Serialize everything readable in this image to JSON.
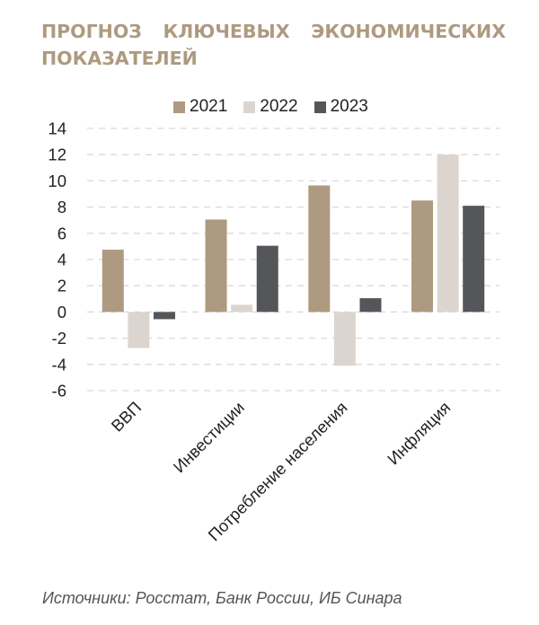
{
  "title": {
    "line1": [
      "ПРОГНОЗ",
      "КЛЮЧЕВЫХ",
      "ЭКОНОМИЧЕСКИХ"
    ],
    "line2": "ПОКАЗАТЕЛЕЙ",
    "color": "#ae9a80"
  },
  "chart_data": {
    "type": "bar",
    "title": "ПРОГНОЗ КЛЮЧЕВЫХ ЭКОНОМИЧЕСКИХ ПОКАЗАТЕЛЕЙ",
    "xlabel": "",
    "ylabel": "",
    "categories": [
      "ВВП",
      "Инвестиции",
      "Потребление населения",
      "Инфляция"
    ],
    "series": [
      {
        "name": "2021",
        "color": "#ae9a80",
        "values": [
          4.75,
          7.05,
          9.65,
          8.5
        ]
      },
      {
        "name": "2022",
        "color": "#dcd5cf",
        "values": [
          -2.75,
          0.55,
          -4.1,
          12.0
        ]
      },
      {
        "name": "2023",
        "color": "#545659",
        "values": [
          -0.55,
          5.05,
          1.05,
          8.1
        ]
      }
    ],
    "ylim": [
      -6,
      14
    ],
    "yticks": [
      14,
      12,
      10,
      8,
      6,
      4,
      2,
      0,
      -2,
      -4,
      -6
    ],
    "grid": true,
    "legend_position": "top"
  },
  "source": "Источники: Росстат, Банк России, ИБ Синара"
}
